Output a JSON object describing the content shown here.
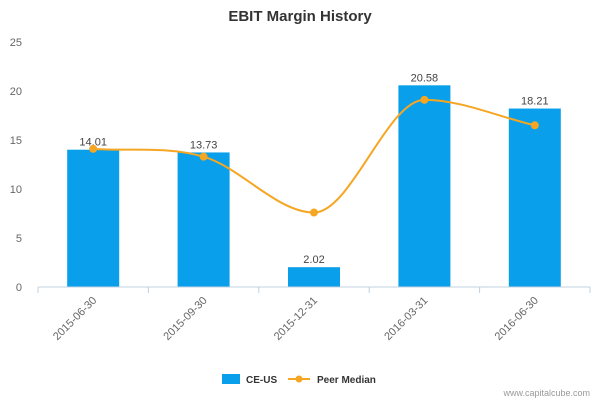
{
  "chart_data": {
    "type": "bar",
    "title": "EBIT Margin History",
    "categories": [
      "2015-06-30",
      "2015-09-30",
      "2015-12-31",
      "2016-03-31",
      "2016-06-30"
    ],
    "series": [
      {
        "name": "CE-US",
        "type": "bar",
        "color": "#0a9fea",
        "values": [
          14.01,
          13.73,
          2.02,
          20.58,
          18.21
        ],
        "labels": [
          "14.01",
          "13.73",
          "2.02",
          "20.58",
          "18.21"
        ]
      },
      {
        "name": "Peer Median",
        "type": "line",
        "color": "#f5a623",
        "values": [
          14.1,
          13.3,
          7.6,
          19.1,
          16.5
        ]
      }
    ],
    "ylim": [
      0,
      25
    ],
    "yticks": [
      0,
      5,
      10,
      15,
      20,
      25
    ],
    "grid": false,
    "legend": "bottom-center"
  },
  "credit": "www.capitalcube.com"
}
